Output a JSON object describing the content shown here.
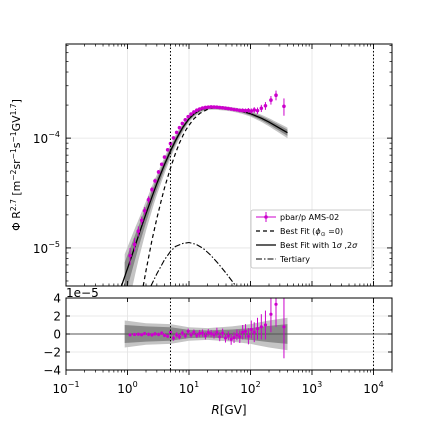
{
  "chart_data": {
    "type": "scatter",
    "ylabel_html_parts": [
      "Φ R",
      "2.7",
      " [m",
      "−2",
      "sr",
      "−1",
      "s",
      "−1",
      "GV",
      "1.7",
      "]"
    ],
    "xlabel_parts": [
      "R",
      "[GV]"
    ],
    "x_scale": "log",
    "xlim": [
      0.1,
      20000
    ],
    "top_panel": {
      "y_scale": "log",
      "ylim": [
        4.5e-06,
        0.00072
      ],
      "y_tick_labels": [
        {
          "value": 1e-05,
          "base": "10",
          "exp": "−5"
        },
        {
          "value": 0.0001,
          "base": "10",
          "exp": "−4"
        }
      ]
    },
    "bottom_panel": {
      "y_scale": "linear",
      "ylim": [
        -4e-05,
        4e-05
      ],
      "offset_text": "1e−5",
      "y_ticks": [
        -4,
        -2,
        0,
        2,
        4
      ]
    },
    "x_tick_labels": [
      {
        "value": 0.1,
        "exp": "−1"
      },
      {
        "value": 1,
        "exp": "0"
      },
      {
        "value": 10,
        "exp": "1"
      },
      {
        "value": 100,
        "exp": "2"
      },
      {
        "value": 1000,
        "exp": "3"
      },
      {
        "value": 10000,
        "exp": "4"
      }
    ],
    "x_tick_base": "10",
    "vertical_lines": [
      5,
      10000
    ],
    "legend": {
      "position": "lower-right",
      "entries": [
        {
          "label": "pbar/p AMS-02",
          "style": "errorbar",
          "color": "#cc00cc"
        },
        {
          "label_parts": [
            "Best Fit (",
            "ϕ",
            "⊙",
            " =0)"
          ],
          "style": "dashed"
        },
        {
          "label_parts": [
            "Best Fit with 1",
            "σ",
            " ,2",
            "σ"
          ],
          "style": "solid"
        },
        {
          "label": "Tertiary",
          "style": "dashdot"
        }
      ]
    },
    "series": [
      {
        "name": "pbar/p AMS-02",
        "color": "#cc00cc",
        "points": [
          [
            1.1,
            8.5e-06,
            1.5e-06
          ],
          [
            1.3,
            1.08e-05,
            1.5e-06
          ],
          [
            1.5,
            1.42e-05,
            1.5e-06
          ],
          [
            1.7,
            1.78e-05,
            1.5e-06
          ],
          [
            1.9,
            2.18e-05,
            1.8e-06
          ],
          [
            2.2,
            2.75e-05,
            2e-06
          ],
          [
            2.5,
            3.4e-05,
            2e-06
          ],
          [
            2.8,
            4.08e-05,
            2e-06
          ],
          [
            3.2,
            4.92e-05,
            2e-06
          ],
          [
            3.6,
            5.78e-05,
            2e-06
          ],
          [
            4.0,
            6.72e-05,
            2e-06
          ],
          [
            4.5,
            7.82e-05,
            2e-06
          ],
          [
            5.0,
            8.92e-05,
            2e-06
          ],
          [
            5.6,
            0.0001005,
            3e-06
          ],
          [
            6.3,
            0.0001128,
            3e-06
          ],
          [
            7.0,
            0.0001245,
            3e-06
          ],
          [
            7.8,
            0.000136,
            3e-06
          ],
          [
            8.7,
            0.0001468,
            3e-06
          ],
          [
            9.7,
            0.0001568,
            3e-06
          ],
          [
            10.8,
            0.0001655,
            3e-06
          ],
          [
            12.0,
            0.0001732,
            3e-06
          ],
          [
            13.4,
            0.0001795,
            3e-06
          ],
          [
            14.9,
            0.0001842,
            4e-06
          ],
          [
            16.6,
            0.0001878,
            4e-06
          ],
          [
            18.5,
            0.0001902,
            4e-06
          ],
          [
            20.6,
            0.0001915,
            4e-06
          ],
          [
            22.9,
            0.0001922,
            4e-06
          ],
          [
            25.5,
            0.0001918,
            4e-06
          ],
          [
            28.4,
            0.0001912,
            5e-06
          ],
          [
            31.6,
            0.00019,
            5e-06
          ],
          [
            35.2,
            0.0001888,
            5e-06
          ],
          [
            39.2,
            0.0001872,
            5e-06
          ],
          [
            43.6,
            0.0001858,
            5e-06
          ],
          [
            48.5,
            0.0001842,
            6e-06
          ],
          [
            54.0,
            0.0001822,
            6e-06
          ],
          [
            60.1,
            0.0001808,
            6e-06
          ],
          [
            67.0,
            0.000179,
            7e-06
          ],
          [
            74.6,
            0.0001788,
            8e-06
          ],
          [
            83.0,
            0.0001782,
            8e-06
          ],
          [
            92.5,
            0.000179,
            9e-06
          ],
          [
            103,
            0.0001765,
            1e-05
          ],
          [
            115,
            0.0001805,
            1.1e-05
          ],
          [
            130,
            0.000178,
            1.2e-05
          ],
          [
            150,
            0.000187,
            1.4e-05
          ],
          [
            175,
            0.000197,
            1.6e-05
          ],
          [
            215,
            0.000222,
            2e-05
          ],
          [
            260,
            0.000246,
            2.5e-05
          ],
          [
            350,
            0.000195,
            3.5e-05
          ]
        ]
      },
      {
        "name": "Best Fit",
        "style": "solid",
        "points": [
          [
            0.8,
            4.5e-06
          ],
          [
            1.0,
            6.5e-06
          ],
          [
            1.2,
            8.8e-06
          ],
          [
            1.5,
            1.28e-05
          ],
          [
            2.0,
            2.05e-05
          ],
          [
            2.5,
            2.92e-05
          ],
          [
            3.0,
            3.85e-05
          ],
          [
            4.0,
            5.75e-05
          ],
          [
            5.0,
            7.65e-05
          ],
          [
            6.0,
            9.45e-05
          ],
          [
            7.0,
            0.000111
          ],
          [
            8.0,
            0.000126
          ],
          [
            10.0,
            0.00015
          ],
          [
            12.0,
            0.000166
          ],
          [
            15.0,
            0.00018
          ],
          [
            20.0,
            0.000189
          ],
          [
            25.0,
            0.00019
          ],
          [
            30.0,
            0.000189
          ],
          [
            40.0,
            0.000186
          ],
          [
            50.0,
            0.000183
          ],
          [
            70.0,
            0.000177
          ],
          [
            100.0,
            0.000167
          ],
          [
            150.0,
            0.000152
          ],
          [
            200.0,
            0.00014
          ],
          [
            300.0,
            0.000123
          ],
          [
            400.0,
            0.000112
          ]
        ]
      },
      {
        "name": "Best Fit (ϕ⊙ =0)",
        "style": "dashed",
        "points": [
          [
            1.8,
            4.5e-06
          ],
          [
            2.0,
            6.2e-06
          ],
          [
            2.5,
            1.18e-05
          ],
          [
            3.0,
            1.85e-05
          ],
          [
            3.5,
            2.65e-05
          ],
          [
            4.0,
            3.52e-05
          ],
          [
            5.0,
            5.35e-05
          ],
          [
            6.0,
            7.25e-05
          ],
          [
            7.0,
            9.05e-05
          ],
          [
            8.0,
            0.000106
          ],
          [
            9.0,
            0.00012
          ],
          [
            10.0,
            0.000131
          ],
          [
            12.0,
            0.00015
          ],
          [
            15.0,
            0.000168
          ],
          [
            20.0,
            0.000183
          ],
          [
            25.0,
            0.000189
          ]
        ]
      },
      {
        "name": "Tertiary",
        "style": "dashdot",
        "points": [
          [
            2.4,
            4.5e-06
          ],
          [
            3.0,
            5.8e-06
          ],
          [
            4.0,
            7.8e-06
          ],
          [
            5.0,
            9.3e-06
          ],
          [
            6.0,
            1.03e-05
          ],
          [
            8.0,
            1.1e-05
          ],
          [
            10.0,
            1.12e-05
          ],
          [
            13.0,
            1.08e-05
          ],
          [
            17.0,
            9.9e-06
          ],
          [
            22.0,
            8.7e-06
          ],
          [
            30.0,
            7.2e-06
          ],
          [
            40.0,
            5.9e-06
          ],
          [
            50.0,
            5e-06
          ],
          [
            58.0,
            4.5e-06
          ]
        ]
      }
    ],
    "bands": {
      "sigma1_frac": [
        [
          0.9,
          0.35
        ],
        [
          1.2,
          0.28
        ],
        [
          1.5,
          0.22
        ],
        [
          2.0,
          0.17
        ],
        [
          3.0,
          0.12
        ],
        [
          5.0,
          0.08
        ],
        [
          10.0,
          0.04
        ],
        [
          20.0,
          0.025
        ],
        [
          50.0,
          0.025
        ],
        [
          100.0,
          0.035
        ],
        [
          200.0,
          0.05
        ],
        [
          400.0,
          0.065
        ]
      ],
      "sigma2_frac": [
        [
          0.9,
          0.6
        ],
        [
          1.2,
          0.5
        ],
        [
          1.5,
          0.4
        ],
        [
          2.0,
          0.3
        ],
        [
          3.0,
          0.21
        ],
        [
          5.0,
          0.14
        ],
        [
          10.0,
          0.07
        ],
        [
          20.0,
          0.045
        ],
        [
          50.0,
          0.045
        ],
        [
          100.0,
          0.06
        ],
        [
          200.0,
          0.085
        ],
        [
          400.0,
          0.11
        ]
      ]
    },
    "residual_bands": {
      "sigma1": [
        [
          0.9,
          1e-05
        ],
        [
          2.0,
          8.5e-06
        ],
        [
          5.0,
          7.5e-06
        ],
        [
          10.0,
          4.5e-06
        ],
        [
          20.0,
          4e-06
        ],
        [
          50.0,
          5e-06
        ],
        [
          100.0,
          6.5e-06
        ],
        [
          200.0,
          9e-06
        ],
        [
          400.0,
          1.1e-05
        ]
      ],
      "sigma2": [
        [
          0.9,
          1.5e-05
        ],
        [
          2.0,
          1.2e-05
        ],
        [
          5.0,
          1.1e-05
        ],
        [
          10.0,
          7.5e-06
        ],
        [
          20.0,
          6.5e-06
        ],
        [
          50.0,
          8.5e-06
        ],
        [
          100.0,
          1.1e-05
        ],
        [
          200.0,
          1.5e-05
        ],
        [
          400.0,
          1.8e-05
        ]
      ]
    },
    "residuals": [
      [
        1.1,
        -1e-06,
        1.5e-06
      ],
      [
        1.3,
        -5e-07,
        1.5e-06
      ],
      [
        1.5,
        -3e-07,
        1.5e-06
      ],
      [
        1.7,
        -8e-07,
        1.5e-06
      ],
      [
        1.9,
        5e-07,
        1.8e-06
      ],
      [
        2.2,
        -4e-07,
        2e-06
      ],
      [
        2.5,
        -1e-06,
        2e-06
      ],
      [
        2.8,
        2e-07,
        2e-06
      ],
      [
        3.2,
        -5e-07,
        2e-06
      ],
      [
        3.6,
        1e-06,
        2e-06
      ],
      [
        4.0,
        -1.5e-06,
        2e-06
      ],
      [
        4.5,
        -2.5e-06,
        2e-06
      ],
      [
        5.0,
        2e-06,
        2e-06
      ],
      [
        5.6,
        -4.5e-06,
        3e-06
      ],
      [
        6.3,
        -1e-06,
        3e-06
      ],
      [
        7.0,
        -3e-06,
        3e-06
      ],
      [
        7.8,
        1e-06,
        3e-06
      ],
      [
        8.7,
        -2e-06,
        3e-06
      ],
      [
        9.7,
        3e-06,
        3e-06
      ],
      [
        10.8,
        -1e-06,
        3e-06
      ],
      [
        12.0,
        2e-06,
        3e-06
      ],
      [
        13.4,
        -1.5e-06,
        3e-06
      ],
      [
        14.9,
        5e-07,
        4e-06
      ],
      [
        16.6,
        1e-06,
        4e-06
      ],
      [
        18.5,
        -2e-06,
        4e-06
      ],
      [
        20.6,
        1.5e-06,
        4e-06
      ],
      [
        22.9,
        5e-07,
        4e-06
      ],
      [
        25.5,
        -1e-06,
        4e-06
      ],
      [
        28.4,
        2e-06,
        5e-06
      ],
      [
        31.6,
        -3e-06,
        5e-06
      ],
      [
        35.2,
        1e-06,
        5e-06
      ],
      [
        39.2,
        -4.5e-06,
        5e-06
      ],
      [
        43.6,
        -2e-06,
        5e-06
      ],
      [
        48.5,
        -6e-06,
        6e-06
      ],
      [
        54.0,
        -4e-06,
        6e-06
      ],
      [
        60.1,
        -1e-06,
        6e-06
      ],
      [
        67.0,
        -3e-06,
        7e-06
      ],
      [
        74.6,
        2e-06,
        8e-06
      ],
      [
        83.0,
        3e-06,
        8e-06
      ],
      [
        92.5,
        -2.5e-06,
        9e-06
      ],
      [
        103,
        5e-06,
        1e-05
      ],
      [
        115,
        2e-06,
        1.1e-05
      ],
      [
        130,
        6e-06,
        1.2e-05
      ],
      [
        150,
        8e-06,
        1.4e-05
      ],
      [
        175,
        1e-05,
        1.6e-05
      ],
      [
        215,
        2.2e-05,
        2e-05
      ],
      [
        260,
        3.3e-05,
        2.5e-05
      ],
      [
        350,
        8e-06,
        3.5e-05
      ]
    ]
  }
}
